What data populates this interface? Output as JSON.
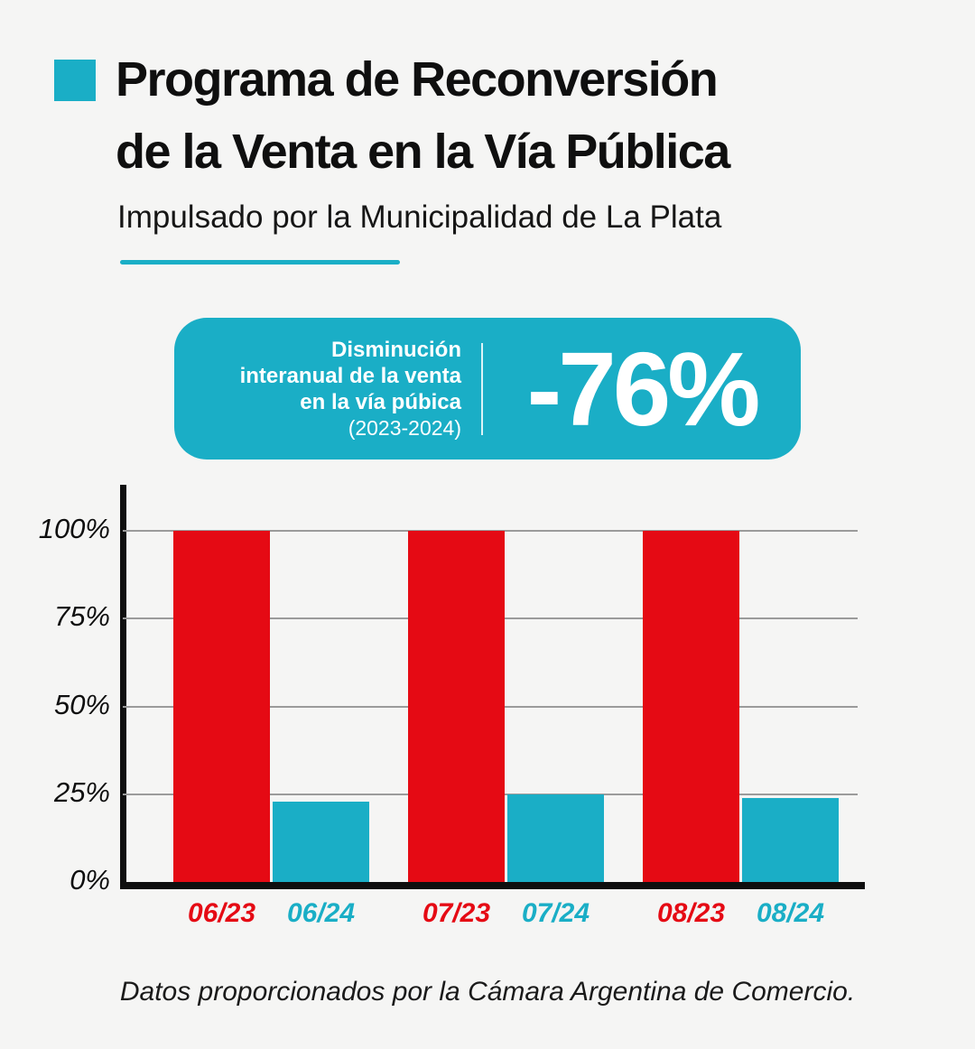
{
  "header": {
    "title_line1": "Programa de Reconversión",
    "title_line2": "de la Venta en la Vía Pública",
    "subtitle": "Impulsado por la Municipalidad de La Plata"
  },
  "badge": {
    "label_line1": "Disminución",
    "label_line2": "interanual de la venta",
    "label_line3": "en la vía púbica",
    "label_line4": "(2023-2024)",
    "value": "-76%"
  },
  "footer": {
    "source": "Datos proporcionados por la Cámara Argentina de Comercio."
  },
  "colors": {
    "teal": "#1aaec6",
    "red": "#e50a14",
    "background": "#f5f5f4",
    "ink": "#0f0f0f"
  },
  "chart_data": {
    "type": "bar",
    "title": "",
    "xlabel": "",
    "ylabel": "",
    "categories": [
      "06/23",
      "06/24",
      "07/23",
      "07/24",
      "08/23",
      "08/24"
    ],
    "values": [
      100,
      23,
      100,
      25,
      100,
      24
    ],
    "bar_colors": [
      "#e50a14",
      "#1aaec6",
      "#e50a14",
      "#1aaec6",
      "#e50a14",
      "#1aaec6"
    ],
    "series_meaning": {
      "red": "año 2023",
      "teal": "año 2024"
    },
    "y_ticks": [
      0,
      25,
      50,
      75,
      100
    ],
    "y_tick_labels": [
      "0%",
      "25%",
      "50%",
      "75%",
      "100%"
    ],
    "ylim": [
      0,
      100
    ],
    "unit": "%",
    "grid": true,
    "legend": "none"
  }
}
